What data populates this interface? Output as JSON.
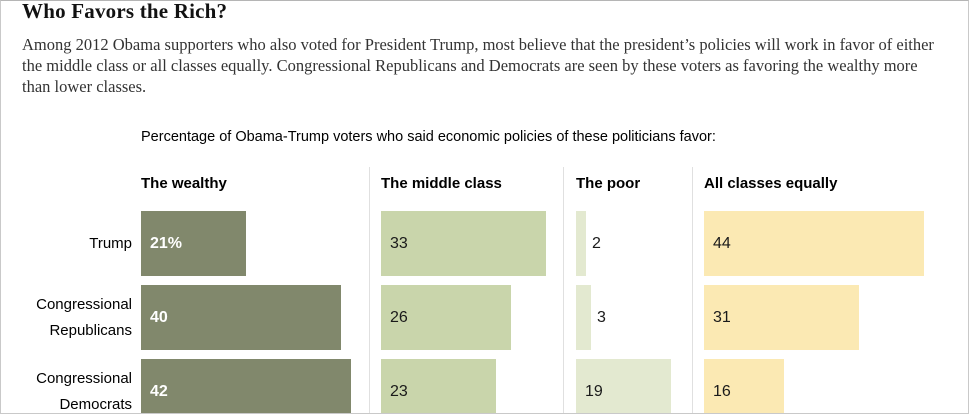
{
  "page": {
    "title": "Who Favors the Rich?",
    "intro": "Among 2012 Obama supporters who also voted for President Trump, most believe that the president’s policies will work in favor of either the middle class or all classes equally. Congressional Republicans and Democrats are seen by these voters as favoring the wealthy more than lower classes."
  },
  "chart_data": {
    "type": "bar",
    "title": "Percentage of Obama-Trump voters who said economic policies of these politicians favor:",
    "unit": "percent",
    "orientation": "horizontal",
    "grid": false,
    "legend_position": "column-headers",
    "xlim": [
      0,
      48
    ],
    "categories": [
      "Trump",
      "Congressional Republicans",
      "Congressional Democrats"
    ],
    "series": [
      {
        "name": "The wealthy",
        "values": [
          21,
          40,
          42
        ],
        "labels": [
          "21%",
          "40",
          "42"
        ],
        "color": "#81886c"
      },
      {
        "name": "The middle class",
        "values": [
          33,
          26,
          23
        ],
        "labels": [
          "33",
          "26",
          "23"
        ],
        "color": "#c9d5ab"
      },
      {
        "name": "The poor",
        "values": [
          2,
          3,
          19
        ],
        "labels": [
          "2",
          "3",
          "19"
        ],
        "color": "#e3e9d0"
      },
      {
        "name": "All classes equally",
        "values": [
          44,
          31,
          16
        ],
        "labels": [
          "44",
          "31",
          "16"
        ],
        "color": "#fbe9b3"
      }
    ]
  }
}
